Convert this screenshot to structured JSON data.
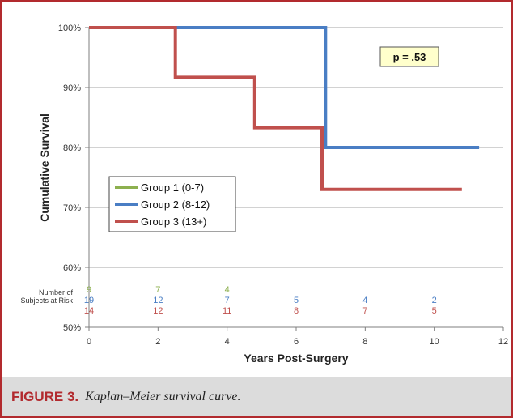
{
  "chart_data": {
    "type": "line",
    "step": true,
    "ylabel": "Cumulative Survival",
    "xlabel": "Years Post-Surgery",
    "xlim": [
      0,
      12
    ],
    "ylim": [
      50,
      100
    ],
    "x_ticks": [
      "0",
      "2",
      "4",
      "6",
      "8",
      "10",
      "12"
    ],
    "y_ticks": [
      "50%",
      "60%",
      "70%",
      "80%",
      "90%",
      "100%"
    ],
    "grid": "horizontal",
    "legend_position": "center-left",
    "annotation": "p = .53",
    "series": [
      {
        "name": "Group 1 (0-7)",
        "color": "#8db04f",
        "points": []
      },
      {
        "name": "Group 2 (8-12)",
        "color": "#4a7ec4",
        "points": [
          [
            0,
            100
          ],
          [
            6.85,
            100
          ],
          [
            6.85,
            80
          ],
          [
            11.3,
            80
          ]
        ]
      },
      {
        "name": "Group 3 (13+)",
        "color": "#c0504d",
        "points": [
          [
            0,
            100
          ],
          [
            2.5,
            100
          ],
          [
            2.5,
            91.7
          ],
          [
            4.8,
            91.7
          ],
          [
            4.8,
            83.3
          ],
          [
            6.75,
            83.3
          ],
          [
            6.75,
            73
          ],
          [
            10.8,
            73
          ]
        ]
      }
    ],
    "risk_table": {
      "label_line1": "Number of",
      "label_line2": "Subjects at Risk",
      "x": [
        0,
        2,
        4,
        6,
        8,
        10
      ],
      "rows": [
        {
          "color": "#8db04f",
          "values": [
            "9",
            "7",
            "4",
            "",
            "",
            ""
          ]
        },
        {
          "color": "#4a7ec4",
          "values": [
            "19",
            "12",
            "7",
            "5",
            "4",
            "2"
          ]
        },
        {
          "color": "#c0504d",
          "values": [
            "14",
            "12",
            "11",
            "8",
            "7",
            "5"
          ]
        }
      ]
    }
  },
  "caption": {
    "label": "FIGURE 3.",
    "text": "Kaplan–Meier survival curve."
  }
}
